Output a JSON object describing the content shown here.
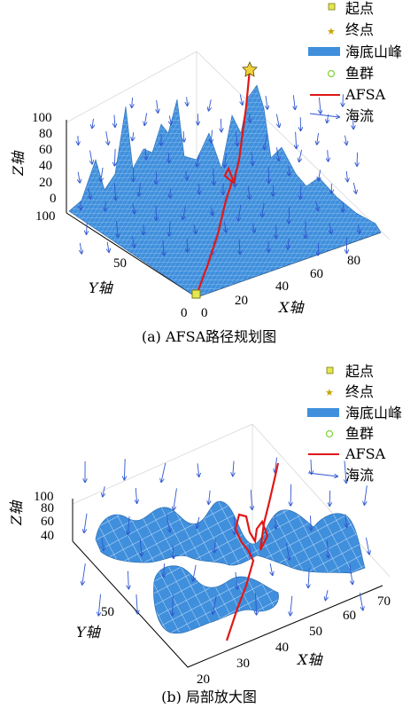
{
  "figure": {
    "panels": [
      {
        "caption": "(a) AFSA路径规划图",
        "xlabel": "X轴",
        "ylabel": "Y轴",
        "zlabel": "Z轴",
        "xticks": [
          "0",
          "20",
          "40",
          "60",
          "80"
        ],
        "yticks": [
          "0",
          "50",
          "100"
        ],
        "zticks": [
          "0",
          "20",
          "40",
          "60",
          "80",
          "100"
        ],
        "legend": [
          "起点",
          "终点",
          "海底山峰",
          "鱼群",
          "AFSA",
          "海流"
        ]
      },
      {
        "caption": "(b) 局部放大图",
        "xlabel": "X轴",
        "ylabel": "Y轴",
        "zlabel": "Z轴",
        "xticks": [
          "20",
          "30",
          "40",
          "50",
          "60",
          "70"
        ],
        "yticks": [
          "50"
        ],
        "zticks": [
          "40",
          "60",
          "80",
          "100"
        ],
        "legend": [
          "起点",
          "终点",
          "海底山峰",
          "鱼群",
          "AFSA",
          "海流"
        ]
      }
    ]
  },
  "colors": {
    "surface": "#3f8fdc",
    "mesh": "#d8ecff",
    "path": "#e01818",
    "current": "#2f55d0",
    "start": "#e4e850",
    "end": "#f2d23a",
    "fish": "#7fd33a"
  },
  "chart_data": [
    {
      "type": "surface",
      "title": "(a) AFSA路径规划图",
      "xlabel": "X轴",
      "ylabel": "Y轴",
      "zlabel": "Z轴",
      "xlim": [
        0,
        100
      ],
      "ylim": [
        0,
        100
      ],
      "zlim": [
        0,
        100
      ],
      "series": [
        {
          "name": "起点",
          "points": [
            {
              "x": 0,
              "y": 0,
              "z": 0
            }
          ]
        },
        {
          "name": "终点",
          "points": [
            {
              "x": 100,
              "y": 100,
              "z": 100
            }
          ]
        },
        {
          "name": "AFSA",
          "points": [
            {
              "x": 0,
              "y": 0,
              "z": 0
            },
            {
              "x": 18,
              "y": 20,
              "z": 10
            },
            {
              "x": 32,
              "y": 36,
              "z": 22
            },
            {
              "x": 44,
              "y": 48,
              "z": 35
            },
            {
              "x": 52,
              "y": 55,
              "z": 48
            },
            {
              "x": 62,
              "y": 66,
              "z": 62
            },
            {
              "x": 74,
              "y": 78,
              "z": 76
            },
            {
              "x": 88,
              "y": 90,
              "z": 90
            },
            {
              "x": 100,
              "y": 100,
              "z": 100
            }
          ]
        }
      ],
      "legend": [
        "起点",
        "终点",
        "海底山峰",
        "鱼群",
        "AFSA",
        "海流"
      ]
    },
    {
      "type": "surface",
      "title": "(b) 局部放大图",
      "xlabel": "X轴",
      "ylabel": "Y轴",
      "zlabel": "Z轴",
      "xlim": [
        20,
        70
      ],
      "ylim": [
        20,
        70
      ],
      "zlim": [
        30,
        100
      ],
      "series": [
        {
          "name": "AFSA",
          "points": [
            {
              "x": 22,
              "y": 22,
              "z": 30
            },
            {
              "x": 32,
              "y": 32,
              "z": 45
            },
            {
              "x": 40,
              "y": 40,
              "z": 58
            },
            {
              "x": 48,
              "y": 48,
              "z": 72
            },
            {
              "x": 56,
              "y": 56,
              "z": 85
            },
            {
              "x": 64,
              "y": 64,
              "z": 100
            }
          ]
        }
      ],
      "legend": [
        "起点",
        "终点",
        "海底山峰",
        "鱼群",
        "AFSA",
        "海流"
      ]
    }
  ]
}
